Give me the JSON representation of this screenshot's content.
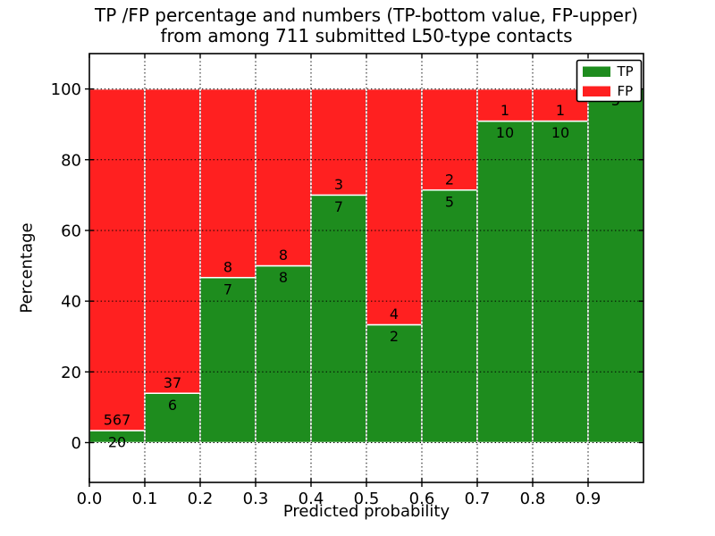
{
  "figure": {
    "title_line1": "TP /FP percentage and numbers (TP-bottom value, FP-upper)",
    "title_line2": "from among 711 submitted L50-type contacts"
  },
  "chart_data": {
    "type": "bar",
    "variant": "stacked-percentage-histogram",
    "title": "TP /FP percentage and numbers (TP-bottom value, FP-upper) from among 711 submitted L50-type contacts",
    "total_contacts": 711,
    "xlabel": "Predicted probability",
    "ylabel": "Percentage",
    "x_tick_labels": [
      "0.0",
      "0.1",
      "0.2",
      "0.3",
      "0.4",
      "0.5",
      "0.6",
      "0.7",
      "0.8",
      "0.9"
    ],
    "y_ticks": [
      0,
      20,
      40,
      60,
      80,
      100
    ],
    "y_tick_labels": [
      "0",
      "20",
      "40",
      "60",
      "80",
      "100"
    ],
    "xlim": [
      0.0,
      1.0
    ],
    "ylim": [
      -11.25,
      110
    ],
    "bin_width": 0.1,
    "bin_starts": [
      0.0,
      0.1,
      0.2,
      0.3,
      0.4,
      0.5,
      0.6,
      0.7,
      0.8,
      0.9
    ],
    "series": [
      {
        "name": "TP",
        "color": "#1e8c1e",
        "counts": [
          20,
          6,
          7,
          8,
          7,
          2,
          5,
          10,
          10,
          5
        ]
      },
      {
        "name": "FP",
        "color": "#ff2020",
        "counts": [
          567,
          37,
          8,
          8,
          3,
          4,
          2,
          1,
          1,
          0
        ]
      }
    ],
    "tp_percentages": [
      3.4,
      14.0,
      46.7,
      50.0,
      70.0,
      33.3,
      71.4,
      90.9,
      90.9,
      100.0
    ],
    "legend": {
      "location": "upper right",
      "entries": [
        {
          "label": "TP",
          "color": "#1e8c1e"
        },
        {
          "label": "FP",
          "color": "#ff2020"
        }
      ]
    },
    "grid": {
      "style": "dotted",
      "color": "#000000"
    }
  }
}
